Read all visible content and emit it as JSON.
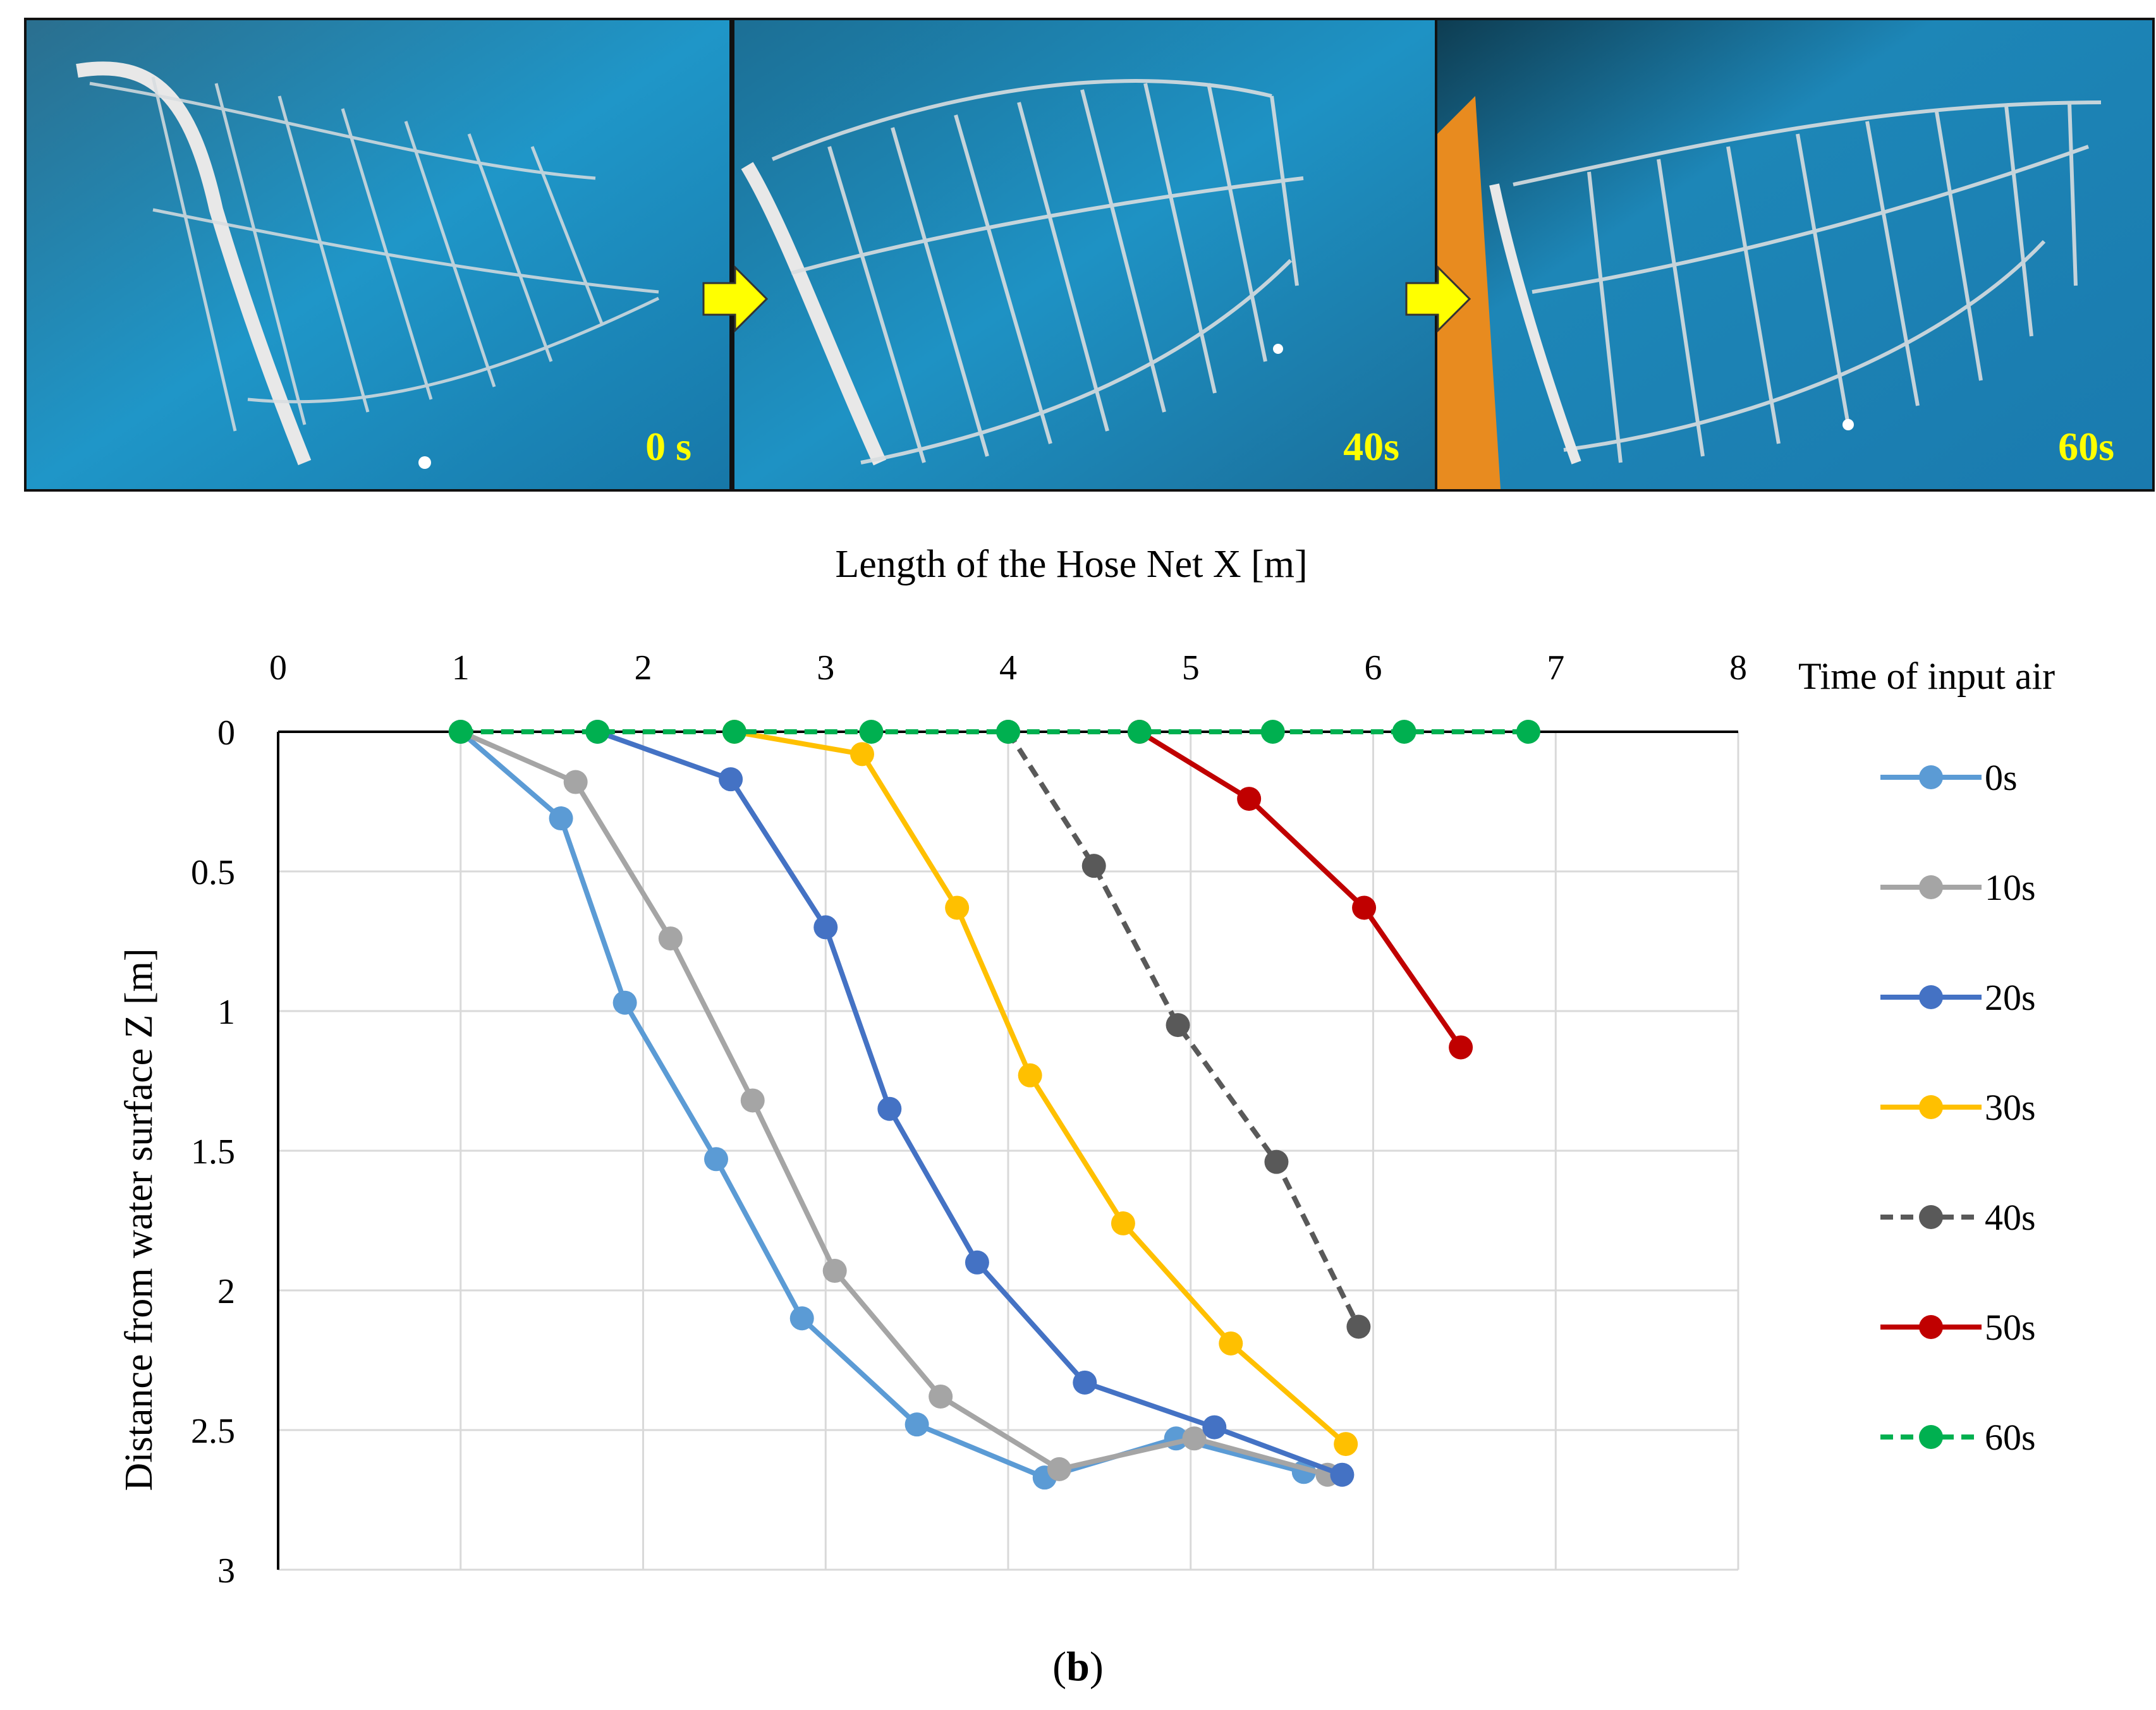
{
  "photos": [
    {
      "label": "0 s"
    },
    {
      "label": "40s"
    },
    {
      "label": "60s"
    }
  ],
  "colors": {
    "water": "#1f8fc0",
    "arrow": "#ffff00",
    "label": "#ffff00"
  },
  "chart_data": {
    "type": "line",
    "xlabel": "Length of the Hose Net X [m]",
    "ylabel": "Distance from water surface Z [m]",
    "xlim": [
      0,
      8
    ],
    "ylim": [
      0,
      3
    ],
    "y_inverted": true,
    "x_axis_position": "top",
    "x_ticks": [
      "0",
      "1",
      "2",
      "3",
      "4",
      "5",
      "6",
      "7",
      "8"
    ],
    "y_ticks": [
      "0",
      "0.5",
      "1",
      "1.5",
      "2",
      "2.5",
      "3"
    ],
    "grid": true,
    "legend_title": "Time of input air",
    "legend_position": "right",
    "series": [
      {
        "name": "0s",
        "color": "#5b9bd5",
        "dashed": false,
        "x": [
          1.0,
          1.55,
          1.9,
          2.4,
          2.87,
          3.5,
          4.2,
          4.92,
          5.62
        ],
        "y": [
          0.0,
          0.31,
          0.97,
          1.53,
          2.1,
          2.48,
          2.67,
          2.53,
          2.65
        ]
      },
      {
        "name": "10s",
        "color": "#a5a5a5",
        "dashed": false,
        "x": [
          1.0,
          1.63,
          2.15,
          2.6,
          3.05,
          3.63,
          4.28,
          5.02,
          5.75
        ],
        "y": [
          0.0,
          0.18,
          0.74,
          1.32,
          1.93,
          2.38,
          2.64,
          2.53,
          2.66
        ]
      },
      {
        "name": "20s",
        "color": "#4472c4",
        "dashed": false,
        "x": [
          1.75,
          2.48,
          3.0,
          3.35,
          3.83,
          4.42,
          5.13,
          5.83
        ],
        "y": [
          0.0,
          0.17,
          0.7,
          1.35,
          1.9,
          2.33,
          2.49,
          2.66
        ]
      },
      {
        "name": "30s",
        "color": "#ffc000",
        "dashed": false,
        "x": [
          2.5,
          3.2,
          3.72,
          4.12,
          4.63,
          5.22,
          5.85
        ],
        "y": [
          0.0,
          0.08,
          0.63,
          1.23,
          1.76,
          2.19,
          2.55
        ]
      },
      {
        "name": "40s",
        "color": "#595959",
        "dashed": true,
        "x": [
          4.0,
          4.47,
          4.93,
          5.47,
          5.92
        ],
        "y": [
          0.0,
          0.48,
          1.05,
          1.54,
          2.13
        ]
      },
      {
        "name": "50s",
        "color": "#c00000",
        "dashed": false,
        "x": [
          4.72,
          5.32,
          5.95,
          6.48
        ],
        "y": [
          0.0,
          0.24,
          0.63,
          1.13
        ]
      },
      {
        "name": "60s",
        "color": "#00b050",
        "dashed": true,
        "x": [
          1.0,
          1.75,
          2.5,
          3.25,
          4.0,
          4.72,
          5.45,
          6.17,
          6.85
        ],
        "y": [
          0.0,
          0.0,
          0.0,
          0.0,
          0.0,
          0.0,
          0.0,
          0.0,
          0.0
        ]
      }
    ]
  },
  "caption": {
    "open": "(",
    "letter": "b",
    "close": ")"
  }
}
